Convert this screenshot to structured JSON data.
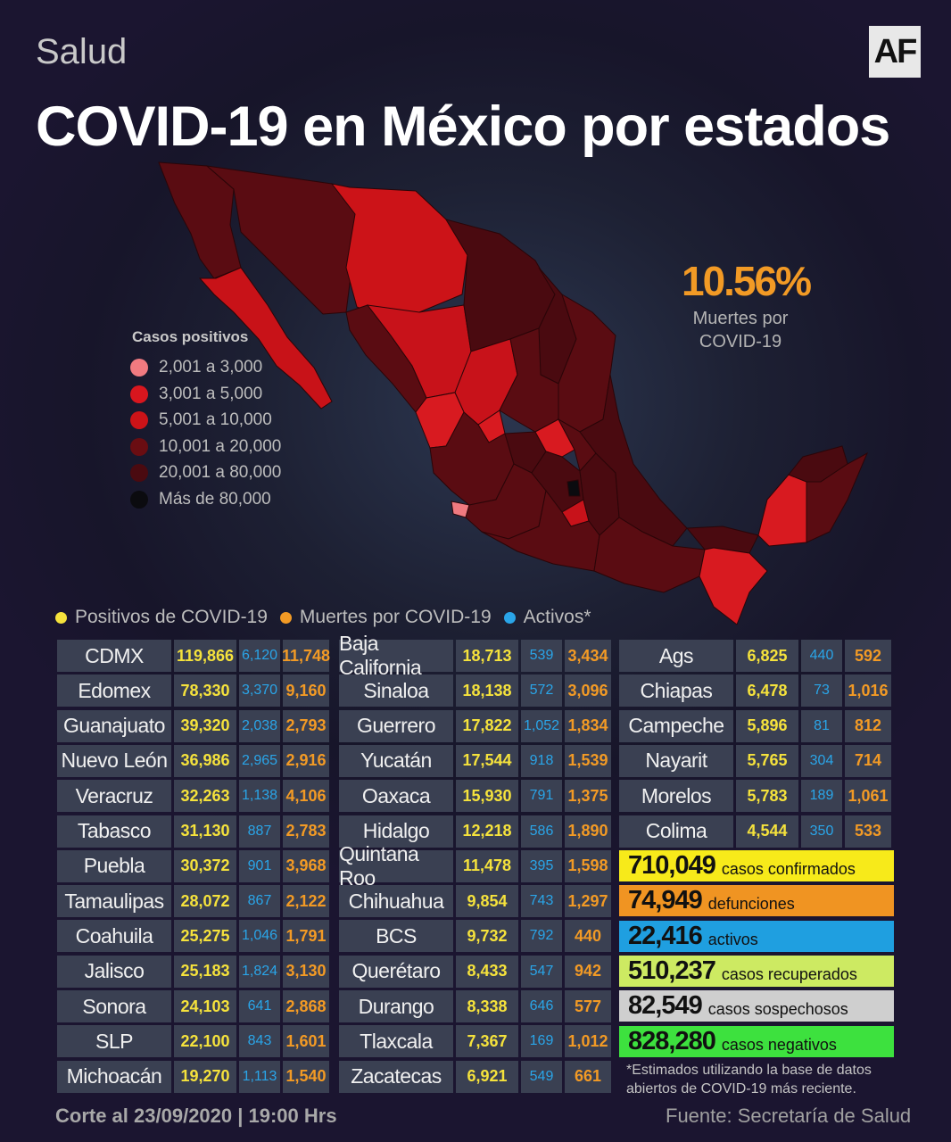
{
  "header": {
    "section": "Salud",
    "logo": "AF",
    "title": "COVID-19 en México por estados"
  },
  "stat": {
    "value": "10.56%",
    "label": "Muertes por COVID-19"
  },
  "legend": {
    "title": "Casos positivos",
    "items": [
      {
        "label": "2,001 a 3,000",
        "color": "#f07a80"
      },
      {
        "label": "3,001 a 5,000",
        "color": "#d8161e"
      },
      {
        "label": "5,001 a 10,000",
        "color": "#cc1318"
      },
      {
        "label": "10,001 a 20,000",
        "color": "#6a0d12"
      },
      {
        "label": "20,001 a 80,000",
        "color": "#4a0a10"
      },
      {
        "label": "Más de 80,000",
        "color": "#0b0b0f"
      }
    ]
  },
  "key": {
    "positivos": {
      "label": "Positivos de COVID-19",
      "color": "#f5e23c"
    },
    "muertes": {
      "label": "Muertes por COVID-19",
      "color": "#f29a25"
    },
    "activos": {
      "label": "Activos*",
      "color": "#2aa5e8"
    }
  },
  "states": [
    [
      {
        "name": "CDMX",
        "positivos": "119,866",
        "activos": "6,120",
        "muertes": "11,748"
      },
      {
        "name": "Edomex",
        "positivos": "78,330",
        "activos": "3,370",
        "muertes": "9,160"
      },
      {
        "name": "Guanajuato",
        "positivos": "39,320",
        "activos": "2,038",
        "muertes": "2,793"
      },
      {
        "name": "Nuevo León",
        "positivos": "36,986",
        "activos": "2,965",
        "muertes": "2,916"
      },
      {
        "name": "Veracruz",
        "positivos": "32,263",
        "activos": "1,138",
        "muertes": "4,106"
      },
      {
        "name": "Tabasco",
        "positivos": "31,130",
        "activos": "887",
        "muertes": "2,783"
      },
      {
        "name": "Puebla",
        "positivos": "30,372",
        "activos": "901",
        "muertes": "3,968"
      },
      {
        "name": "Tamaulipas",
        "positivos": "28,072",
        "activos": "867",
        "muertes": "2,122"
      },
      {
        "name": "Coahuila",
        "positivos": "25,275",
        "activos": "1,046",
        "muertes": "1,791"
      },
      {
        "name": "Jalisco",
        "positivos": "25,183",
        "activos": "1,824",
        "muertes": "3,130"
      },
      {
        "name": "Sonora",
        "positivos": "24,103",
        "activos": "641",
        "muertes": "2,868"
      },
      {
        "name": "SLP",
        "positivos": "22,100",
        "activos": "843",
        "muertes": "1,601"
      },
      {
        "name": "Michoacán",
        "positivos": "19,270",
        "activos": "1,113",
        "muertes": "1,540"
      }
    ],
    [
      {
        "name": "Baja California",
        "positivos": "18,713",
        "activos": "539",
        "muertes": "3,434"
      },
      {
        "name": "Sinaloa",
        "positivos": "18,138",
        "activos": "572",
        "muertes": "3,096"
      },
      {
        "name": "Guerrero",
        "positivos": "17,822",
        "activos": "1,052",
        "muertes": "1,834"
      },
      {
        "name": "Yucatán",
        "positivos": "17,544",
        "activos": "918",
        "muertes": "1,539"
      },
      {
        "name": "Oaxaca",
        "positivos": "15,930",
        "activos": "791",
        "muertes": "1,375"
      },
      {
        "name": "Hidalgo",
        "positivos": "12,218",
        "activos": "586",
        "muertes": "1,890"
      },
      {
        "name": "Quintana Roo",
        "positivos": "11,478",
        "activos": "395",
        "muertes": "1,598"
      },
      {
        "name": "Chihuahua",
        "positivos": "9,854",
        "activos": "743",
        "muertes": "1,297"
      },
      {
        "name": "BCS",
        "positivos": "9,732",
        "activos": "792",
        "muertes": "440"
      },
      {
        "name": "Querétaro",
        "positivos": "8,433",
        "activos": "547",
        "muertes": "942"
      },
      {
        "name": "Durango",
        "positivos": "8,338",
        "activos": "646",
        "muertes": "577"
      },
      {
        "name": "Tlaxcala",
        "positivos": "7,367",
        "activos": "169",
        "muertes": "1,012"
      },
      {
        "name": "Zacatecas",
        "positivos": "6,921",
        "activos": "549",
        "muertes": "661"
      }
    ],
    [
      {
        "name": "Ags",
        "positivos": "6,825",
        "activos": "440",
        "muertes": "592"
      },
      {
        "name": "Chiapas",
        "positivos": "6,478",
        "activos": "73",
        "muertes": "1,016"
      },
      {
        "name": "Campeche",
        "positivos": "5,896",
        "activos": "81",
        "muertes": "812"
      },
      {
        "name": "Nayarit",
        "positivos": "5,765",
        "activos": "304",
        "muertes": "714"
      },
      {
        "name": "Morelos",
        "positivos": "5,783",
        "activos": "189",
        "muertes": "1,061"
      },
      {
        "name": "Colima",
        "positivos": "4,544",
        "activos": "350",
        "muertes": "533"
      }
    ]
  ],
  "totals": [
    {
      "value": "710,049",
      "label": "casos confirmados",
      "color": "#f7ea1a"
    },
    {
      "value": "74,949",
      "label": "defunciones",
      "color": "#f09422"
    },
    {
      "value": "22,416",
      "label": "activos",
      "color": "#1f9fe0"
    },
    {
      "value": "510,237",
      "label": "casos recuperados",
      "color": "#cdea62"
    },
    {
      "value": "82,549",
      "label": "casos sospechosos",
      "color": "#cfcfcf"
    },
    {
      "value": "828,280",
      "label": "casos negativos",
      "color": "#3de13e"
    }
  ],
  "note": "*Estimados utilizando la base de datos abiertos de COVID-19 más reciente.",
  "footer": {
    "cutoff": "Corte al 23/09/2020 | 19:00 Hrs",
    "source": "Fuente: Secretaría de Salud"
  }
}
